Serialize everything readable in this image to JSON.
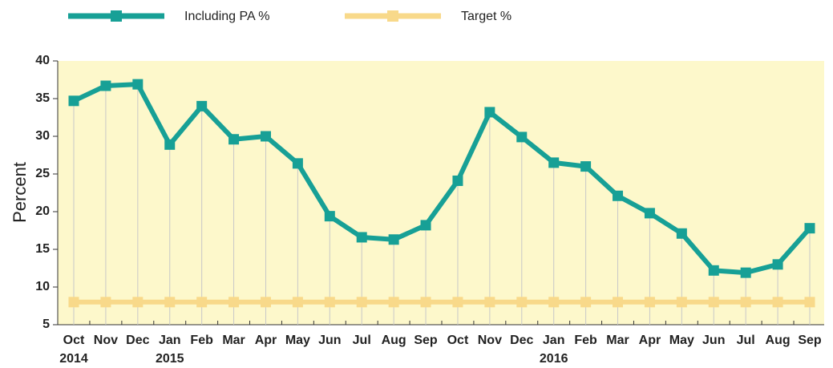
{
  "chart_data": {
    "type": "line",
    "categories": [
      "Oct",
      "Nov",
      "Dec",
      "Jan",
      "Feb",
      "Mar",
      "Apr",
      "May",
      "Jun",
      "Jul",
      "Aug",
      "Sep",
      "Oct",
      "Nov",
      "Dec",
      "Jan",
      "Feb",
      "Mar",
      "Apr",
      "May",
      "Jun",
      "Jul",
      "Aug",
      "Sep"
    ],
    "year_labels": [
      "2014",
      null,
      null,
      "2015",
      null,
      null,
      null,
      null,
      null,
      null,
      null,
      null,
      null,
      null,
      null,
      "2016",
      null,
      null,
      null,
      null,
      null,
      null,
      null,
      null
    ],
    "y_label": "Percent",
    "ylim": [
      5,
      40
    ],
    "yticks": [
      5,
      10,
      15,
      20,
      25,
      30,
      35,
      40
    ],
    "drop_lines": true,
    "series": [
      {
        "name": "Including PA %",
        "color": "#17a096",
        "values": [
          34.7,
          36.7,
          36.9,
          28.9,
          34.0,
          29.6,
          30.0,
          26.4,
          19.4,
          16.6,
          16.3,
          18.2,
          24.1,
          33.2,
          29.9,
          26.5,
          26.0,
          22.1,
          19.8,
          17.1,
          12.2,
          11.9,
          13.0,
          17.8
        ]
      },
      {
        "name": "Target %",
        "color": "#f8d98a",
        "values": [
          8,
          8,
          8,
          8,
          8,
          8,
          8,
          8,
          8,
          8,
          8,
          8,
          8,
          8,
          8,
          8,
          8,
          8,
          8,
          8,
          8,
          8,
          8,
          8
        ]
      }
    ]
  }
}
